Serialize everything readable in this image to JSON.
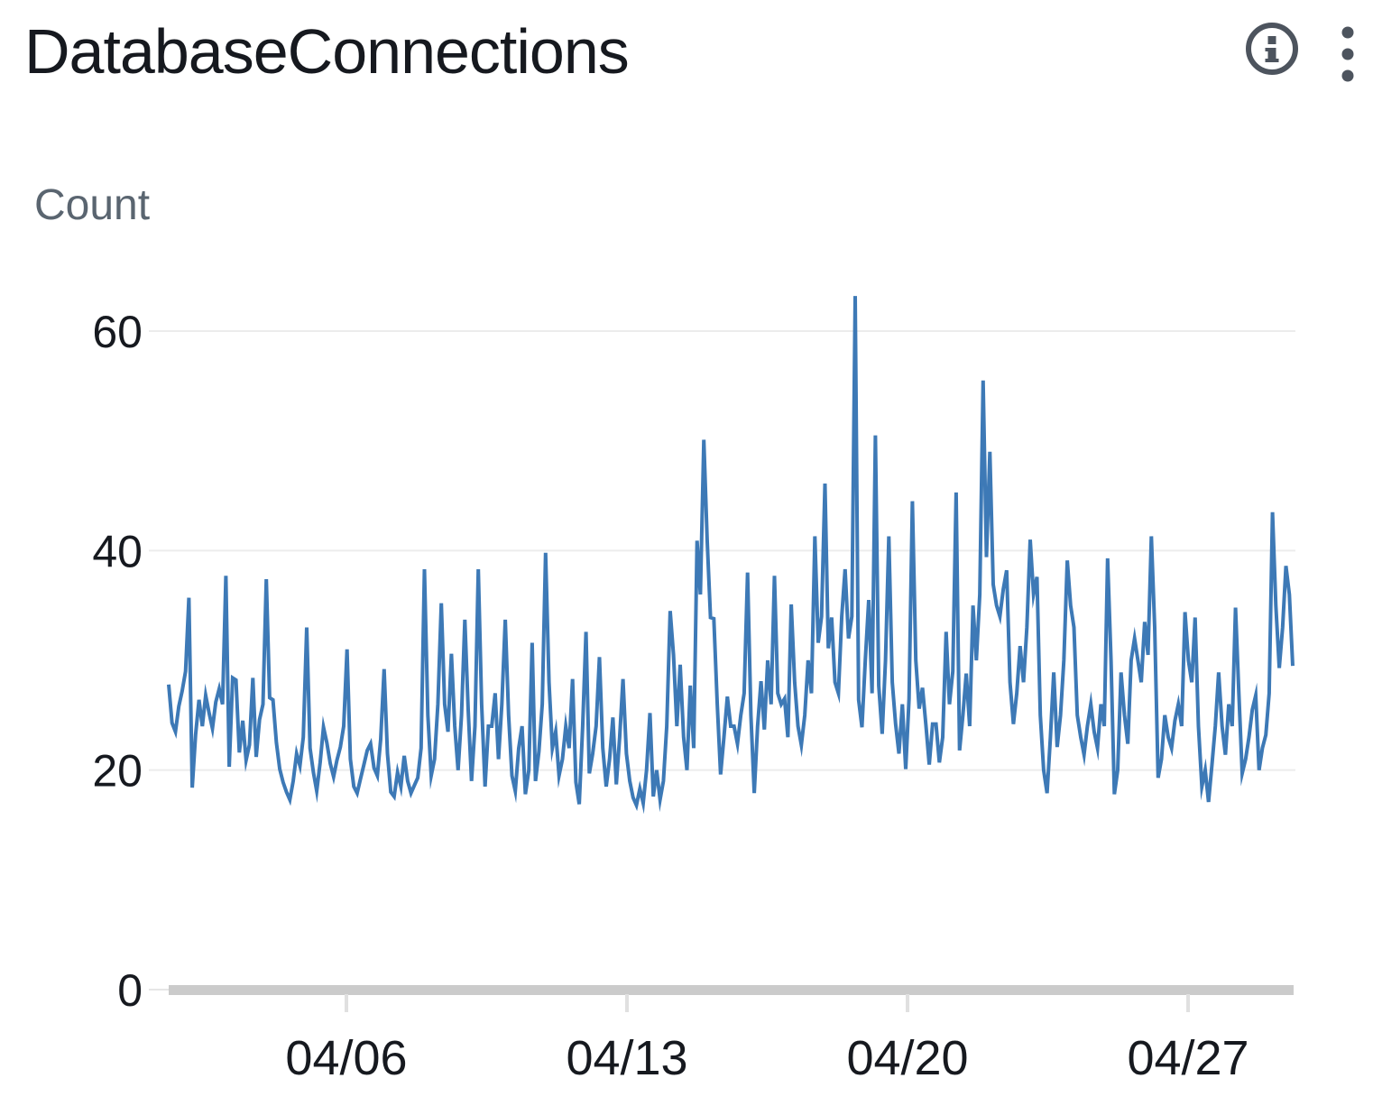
{
  "header": {
    "title": "DatabaseConnections"
  },
  "toolbar": {
    "info_icon": "info-circle-icon",
    "menu_icon": "kebab-menu-icon"
  },
  "colors": {
    "line": "#3d79b6",
    "grid": "#ececec",
    "axis_bar": "#cbcbcb",
    "axis_stub": "#e6e6e6",
    "tick_mark": "#e0e0e0",
    "label_text": "#16191f",
    "unit_text": "#5a6570",
    "icon": "#4d545e"
  },
  "chart_data": {
    "type": "line",
    "title": "DatabaseConnections",
    "ylabel": "Count",
    "grid": "horizontal",
    "legend_position": "none",
    "x_axis": {
      "unit": "date (MM/DD)",
      "span_days_april": [
        1.6,
        29.5
      ],
      "ticks": [
        {
          "day": 6,
          "label": "04/06"
        },
        {
          "day": 13,
          "label": "04/13"
        },
        {
          "day": 20,
          "label": "04/20"
        },
        {
          "day": 27,
          "label": "04/27"
        }
      ]
    },
    "y_axis": {
      "ticks": [
        0,
        20,
        40,
        60
      ],
      "lim": [
        0,
        66
      ]
    },
    "series": [
      {
        "name": "DatabaseConnections",
        "color": "#3d79b6",
        "points_interval_hours": 2,
        "values": [
          27.8,
          24.3,
          23.5,
          25.8,
          27.2,
          29.0,
          35.7,
          18.4,
          23.2,
          26.4,
          24.0,
          26.8,
          25.2,
          23.8,
          26.2,
          27.4,
          26.0,
          37.7,
          20.3,
          28.4,
          28.2,
          21.6,
          24.5,
          20.9,
          22.3,
          28.4,
          21.2,
          24.6,
          26.0,
          37.4,
          26.6,
          26.4,
          22.5,
          20.1,
          18.9,
          18.0,
          17.3,
          19.0,
          21.5,
          20.4,
          23.0,
          33.0,
          22.0,
          19.8,
          18.1,
          20.7,
          23.9,
          22.5,
          20.6,
          19.4,
          20.9,
          22.1,
          24.0,
          31.0,
          21.0,
          18.5,
          17.9,
          19.2,
          20.5,
          21.8,
          22.4,
          20.2,
          19.5,
          22.8,
          29.2,
          21.5,
          18.0,
          17.6,
          19.8,
          18.5,
          21.3,
          19.0,
          17.9,
          18.6,
          19.3,
          22.0,
          38.3,
          25.0,
          19.5,
          21.0,
          26.0,
          35.2,
          26.0,
          23.5,
          30.6,
          24.0,
          20.0,
          25.0,
          33.7,
          25.5,
          19.0,
          24.0,
          38.3,
          26.0,
          18.5,
          24.0,
          24.0,
          27.0,
          21.0,
          26.0,
          33.7,
          25.0,
          19.5,
          18.1,
          22.0,
          24.0,
          17.8,
          20.0,
          31.6,
          19.0,
          21.7,
          26.0,
          39.8,
          28.0,
          22.0,
          23.5,
          19.5,
          21.0,
          24.0,
          22.0,
          28.3,
          18.9,
          16.9,
          24.0,
          32.6,
          19.7,
          21.5,
          24.0,
          30.3,
          22.0,
          18.5,
          21.0,
          24.8,
          18.7,
          23.0,
          28.3,
          21.5,
          19.0,
          17.5,
          16.8,
          18.3,
          17.0,
          20.0,
          25.2,
          17.6,
          20.0,
          17.3,
          19.0,
          24.0,
          34.5,
          30.5,
          24.0,
          29.6,
          23.0,
          20.0,
          27.7,
          22.0,
          40.9,
          36.0,
          50.1,
          41.0,
          33.9,
          33.8,
          26.0,
          19.6,
          23.0,
          26.7,
          24.0,
          24.0,
          22.4,
          25.0,
          27.0,
          38.0,
          25.0,
          17.9,
          24.0,
          28.1,
          23.7,
          30.0,
          26.0,
          37.7,
          27.0,
          26.0,
          26.5,
          23.0,
          35.1,
          28.0,
          24.0,
          22.3,
          25.0,
          30.0,
          27.0,
          41.3,
          31.6,
          34.0,
          46.1,
          31.1,
          33.9,
          28.0,
          27.0,
          34.0,
          38.3,
          32.0,
          34.0,
          63.2,
          26.4,
          23.9,
          30.0,
          35.5,
          27.0,
          50.5,
          27.7,
          23.3,
          30.0,
          41.3,
          28.0,
          24.2,
          21.5,
          26.0,
          20.1,
          26.5,
          44.5,
          30.0,
          25.6,
          27.5,
          24.1,
          20.5,
          24.2,
          24.2,
          20.7,
          23.0,
          32.6,
          26.0,
          29.0,
          45.3,
          21.8,
          25.0,
          28.8,
          24.0,
          35.0,
          30.0,
          36.0,
          55.5,
          39.4,
          49.0,
          36.9,
          35.0,
          34.0,
          36.5,
          38.2,
          28.0,
          24.2,
          27.0,
          31.3,
          28.0,
          33.0,
          41.0,
          36.0,
          37.6,
          25.0,
          20.0,
          17.9,
          23.0,
          28.9,
          22.1,
          25.0,
          30.0,
          39.1,
          35.0,
          33.0,
          25.0,
          23.0,
          21.4,
          24.0,
          26.0,
          23.5,
          22.0,
          26.0,
          24.0,
          39.3,
          30.0,
          17.8,
          20.0,
          28.9,
          25.0,
          22.4,
          30.0,
          32.0,
          30.0,
          28.0,
          33.5,
          30.5,
          41.3,
          33.0,
          19.3,
          21.0,
          25.0,
          23.0,
          22.0,
          24.5,
          26.0,
          24.0,
          34.4,
          30.0,
          28.0,
          33.9,
          24.0,
          18.5,
          20.0,
          17.1,
          20.5,
          24.0,
          28.9,
          24.0,
          21.4,
          26.0,
          24.0,
          34.8,
          27.0,
          19.7,
          21.0,
          23.0,
          25.5,
          26.8,
          20.0,
          22.0,
          23.2,
          27.0,
          43.5,
          35.0,
          29.3,
          33.0,
          38.6,
          36.0,
          29.5
        ]
      }
    ]
  }
}
